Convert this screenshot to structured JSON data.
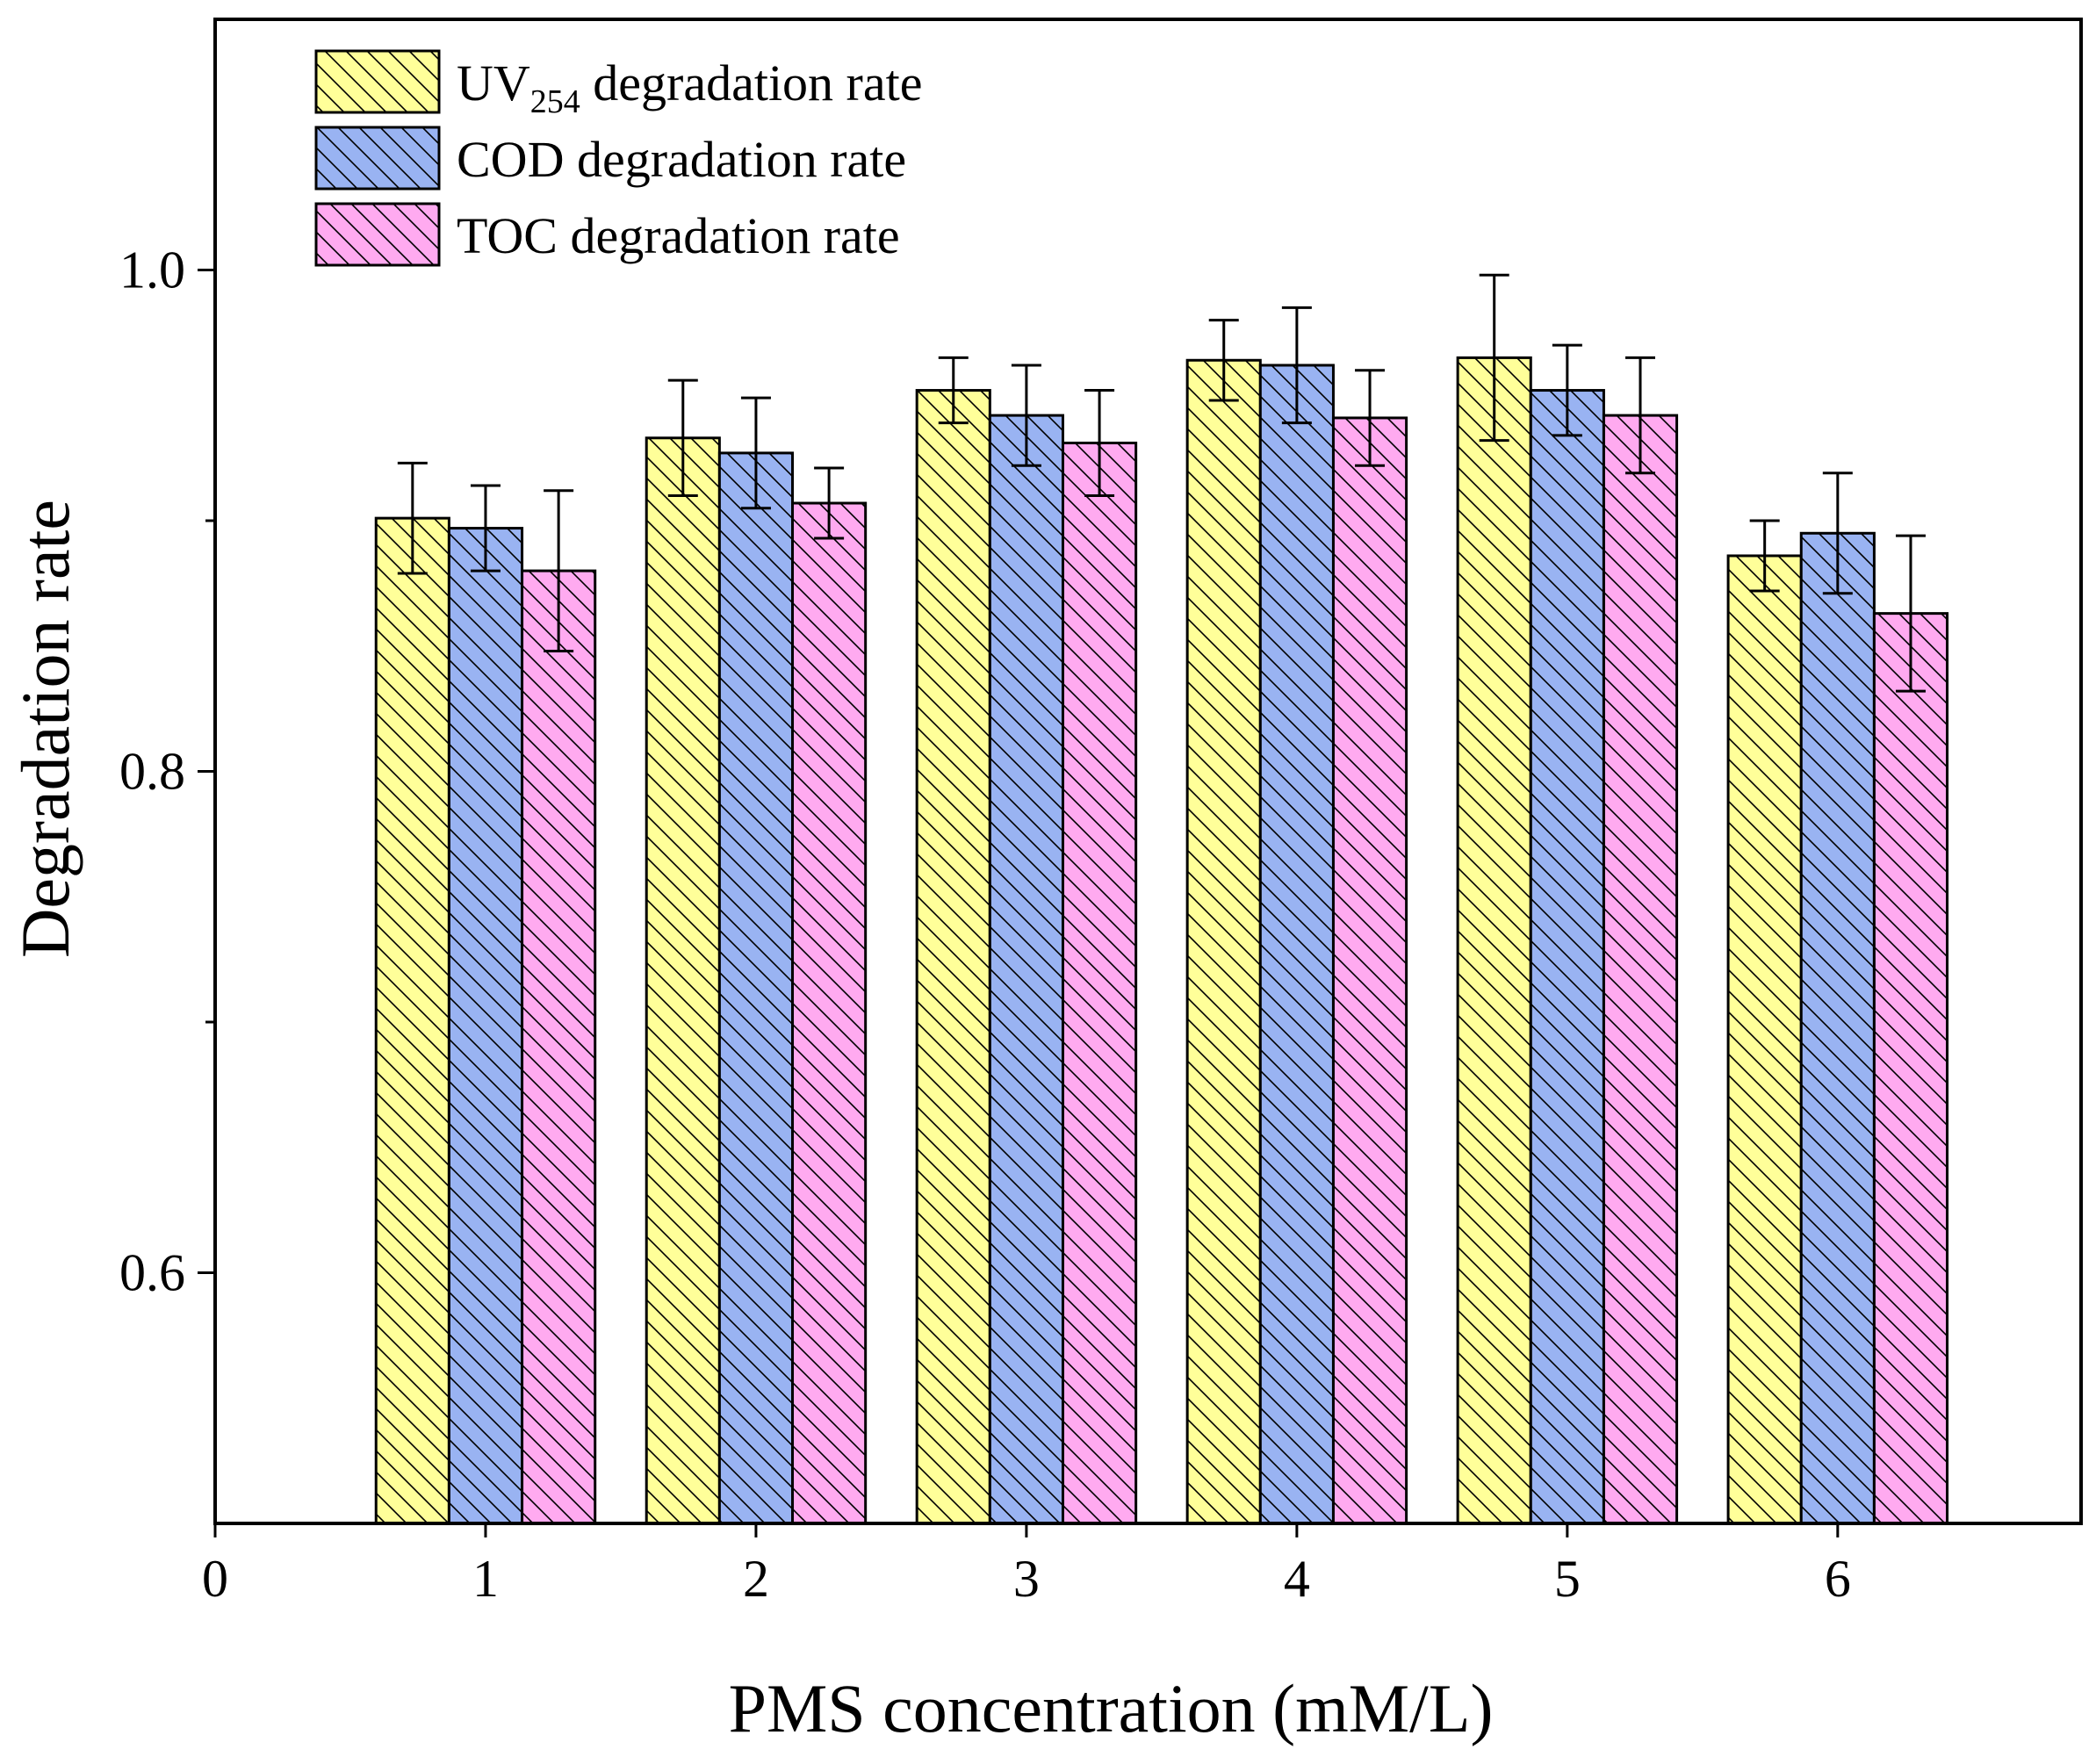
{
  "chart_data": {
    "type": "bar",
    "title": "",
    "xlabel": "PMS concentration (mM/L)",
    "ylabel": "Degradation rate",
    "x_ticks": [
      "0",
      "1",
      "2",
      "3",
      "4",
      "5",
      "6"
    ],
    "y_ticks": [
      "0.6",
      "0.8",
      "1.0"
    ],
    "xlim": [
      0,
      6.9
    ],
    "ylim": [
      0.5,
      1.1
    ],
    "categories": [
      1,
      2,
      3,
      4,
      5,
      6
    ],
    "legend_position": "top-left",
    "grid": false,
    "pattern": "diagonal-hatch",
    "series": [
      {
        "name": "UV254 degradation rate",
        "legend_main": "UV",
        "legend_sub": "254",
        "legend_rest": " degradation rate",
        "color": "#FFFF99",
        "values": [
          0.901,
          0.933,
          0.952,
          0.964,
          0.965,
          0.886
        ],
        "errors": [
          0.022,
          0.023,
          0.013,
          0.016,
          0.033,
          0.014
        ]
      },
      {
        "name": "COD degradation rate",
        "legend_main": "COD degradation rate",
        "legend_sub": "",
        "legend_rest": "",
        "color": "#99B3F2",
        "values": [
          0.897,
          0.927,
          0.942,
          0.962,
          0.952,
          0.895
        ],
        "errors": [
          0.017,
          0.022,
          0.02,
          0.023,
          0.018,
          0.024
        ]
      },
      {
        "name": "TOC degradation rate",
        "legend_main": "TOC degradation rate",
        "legend_sub": "",
        "legend_rest": "",
        "color": "#FFAAF0",
        "values": [
          0.88,
          0.907,
          0.931,
          0.941,
          0.942,
          0.863
        ],
        "errors": [
          0.032,
          0.014,
          0.021,
          0.019,
          0.023,
          0.031
        ]
      }
    ]
  }
}
